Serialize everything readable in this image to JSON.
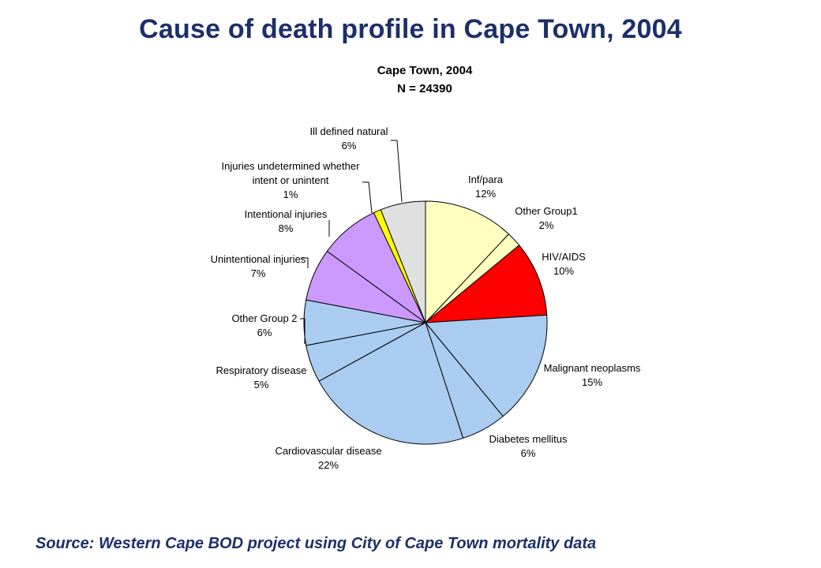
{
  "slide": {
    "title": "Cause of death profile in Cape Town, 2004",
    "source": "Source: Western Cape BOD project using City of Cape Town mortality data"
  },
  "chart_data": {
    "type": "pie",
    "title": "Cape Town, 2004",
    "subtitle": "N = 24390",
    "total": 24390,
    "start_angle_deg": 0,
    "direction": "clockwise",
    "slices": [
      {
        "name": "Inf/para",
        "value_label": "12%",
        "value": 12,
        "color": "#ffffc0"
      },
      {
        "name": "Other Group1",
        "value_label": "2%",
        "value": 2,
        "color": "#ffffc0"
      },
      {
        "name": "HIV/AIDS",
        "value_label": "10%",
        "value": 10,
        "color": "#ff0000"
      },
      {
        "name": "Malignant neoplasms",
        "value_label": "15%",
        "value": 15,
        "color": "#a9ccf0"
      },
      {
        "name": "Diabetes mellitus",
        "value_label": "6%",
        "value": 6,
        "color": "#a9ccf0"
      },
      {
        "name": "Cardiovascular disease",
        "value_label": "22%",
        "value": 22,
        "color": "#a9ccf0"
      },
      {
        "name": "Respiratory disease",
        "value_label": "5%",
        "value": 5,
        "color": "#a9ccf0"
      },
      {
        "name": "Other Group 2",
        "value_label": "6%",
        "value": 6,
        "color": "#a9ccf0"
      },
      {
        "name": "Unintentional injuries",
        "value_label": "7%",
        "value": 7,
        "color": "#cc99ff"
      },
      {
        "name": "Intentional injuries",
        "value_label": "8%",
        "value": 8,
        "color": "#cc99ff"
      },
      {
        "name": "Injuries undetermined whether intent or unintent",
        "value_label": "1%",
        "value": 1,
        "color": "#ffff00"
      },
      {
        "name": "Ill defined natural",
        "value_label": "6%",
        "value": 6,
        "color": "#e0e0e0"
      }
    ]
  }
}
